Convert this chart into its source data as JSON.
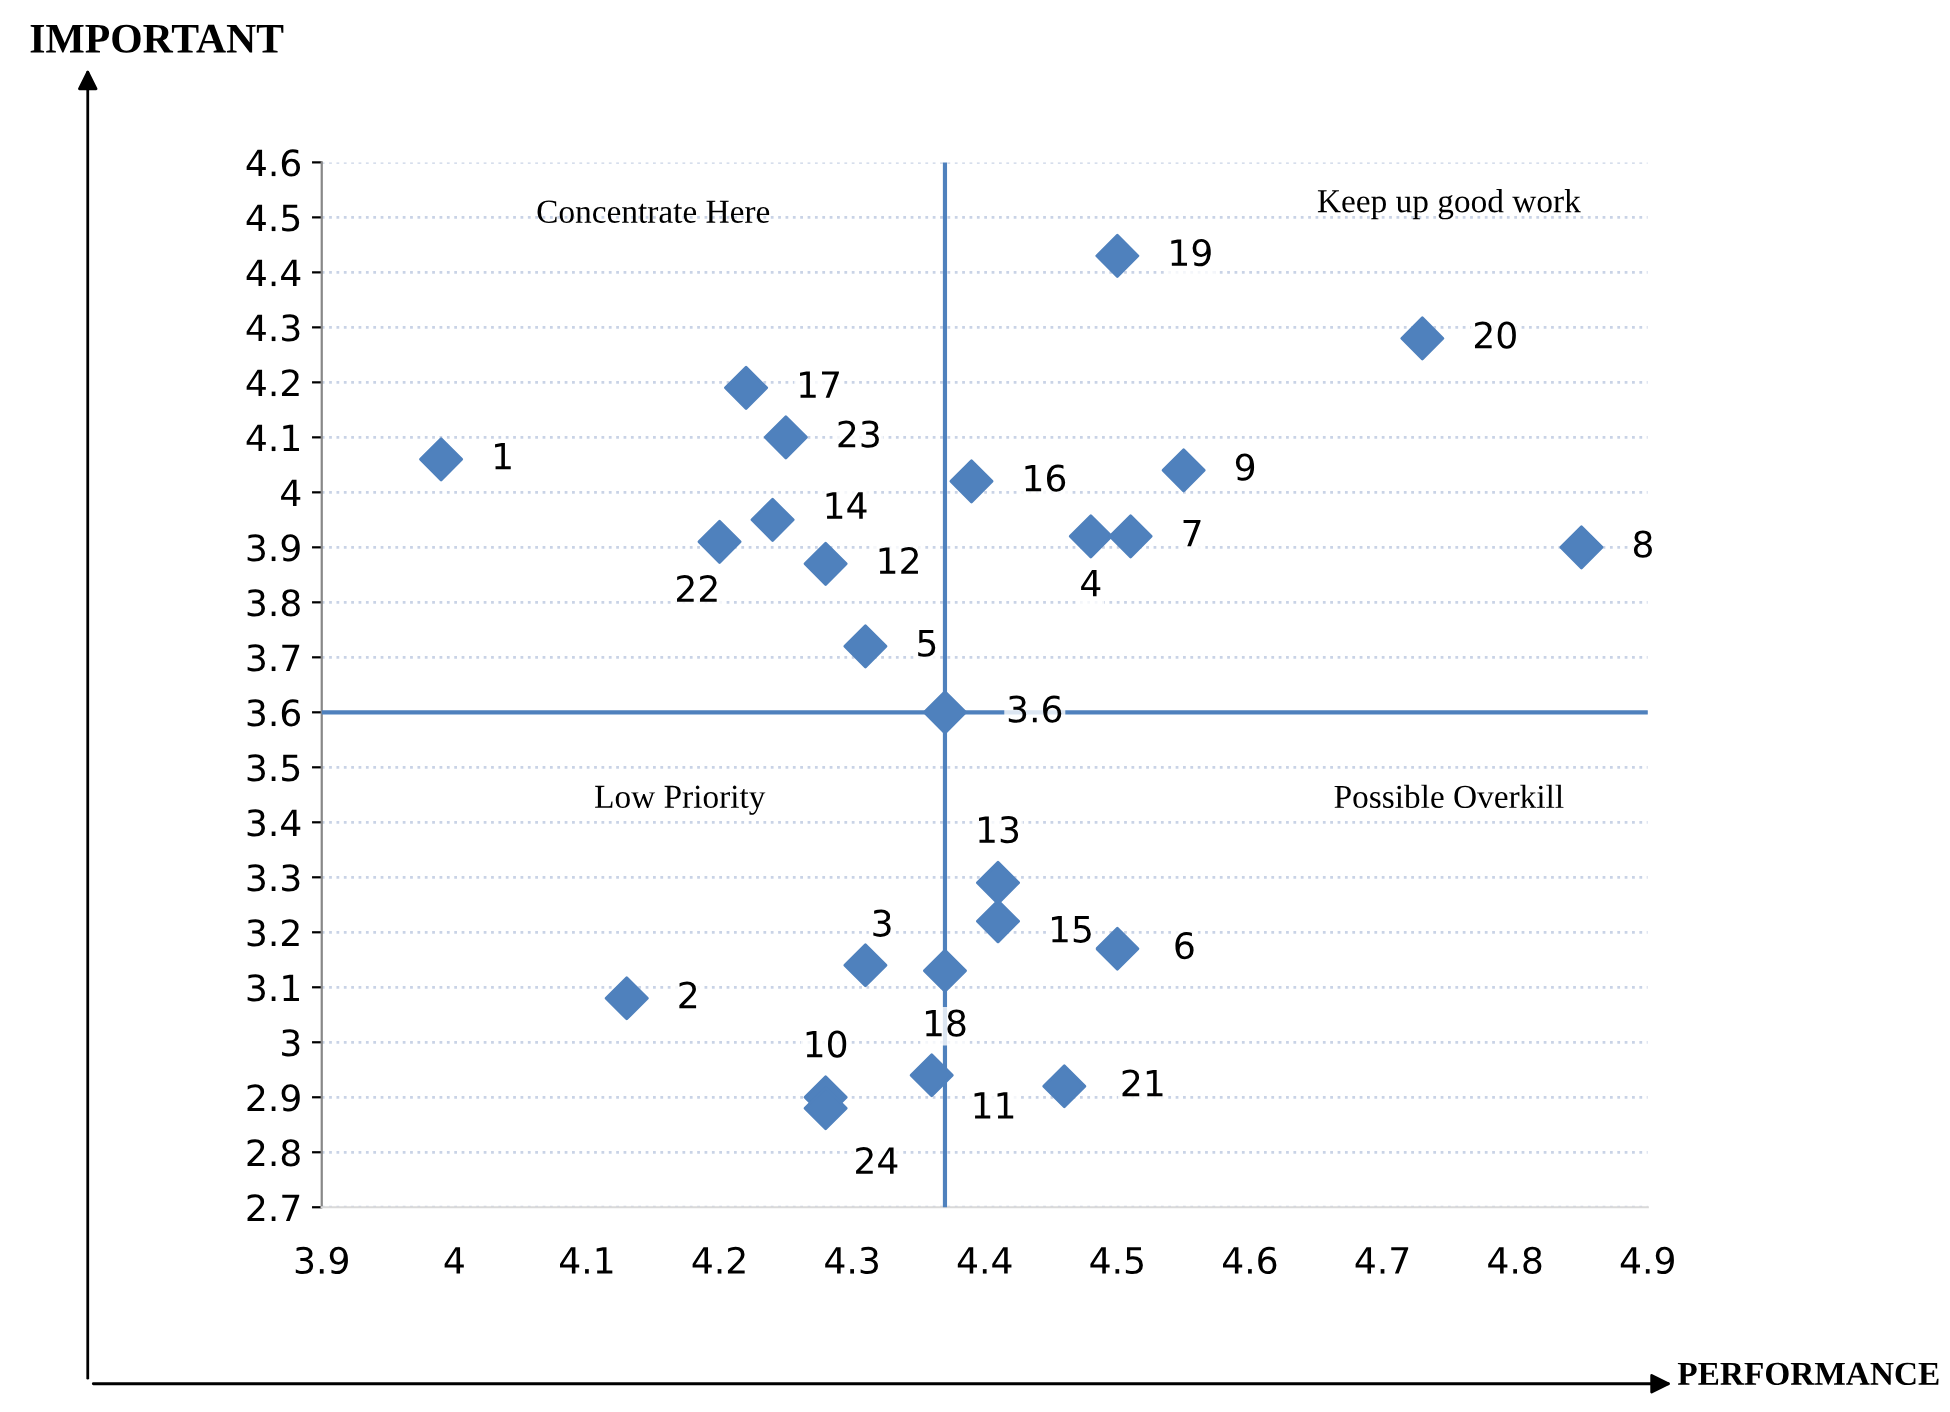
{
  "chart_data": {
    "type": "scatter",
    "xlabel": "PERFORMANCE",
    "ylabel": "IMPORTANT",
    "x": [
      3.99,
      4.22,
      4.25,
      4.24,
      4.2,
      4.28,
      4.31,
      4.37,
      4.39,
      4.5,
      4.55,
      4.48,
      4.51,
      4.73,
      4.85,
      4.41,
      4.41,
      4.5,
      4.31,
      4.37,
      4.13,
      4.36,
      4.46,
      4.28,
      4.28
    ],
    "values": [
      4.06,
      4.19,
      4.1,
      3.95,
      3.91,
      3.87,
      3.72,
      3.6,
      4.02,
      4.43,
      4.04,
      3.92,
      3.92,
      4.28,
      3.9,
      3.29,
      3.22,
      3.17,
      3.14,
      3.13,
      3.08,
      2.94,
      2.92,
      2.9,
      2.88
    ],
    "color": "#4f81bd",
    "marker": "diamond",
    "grid": "y",
    "xlim": [
      3.9,
      4.9
    ],
    "xticks": [
      3.9,
      4,
      4.1,
      4.2,
      4.3,
      4.4,
      4.5,
      4.6,
      4.7,
      4.8,
      4.9
    ],
    "ylim": [
      2.7,
      4.6
    ],
    "yticks": [
      2.7,
      2.8,
      2.9,
      3,
      3.1,
      3.2,
      3.3,
      3.4,
      3.5,
      3.6,
      3.7,
      3.8,
      3.9,
      4,
      4.1,
      4.2,
      4.3,
      4.4,
      4.5,
      4.6
    ],
    "ref_lines": [
      {
        "axis": "x",
        "value": 4.37,
        "color": "#4f81bd"
      },
      {
        "axis": "y",
        "value": 3.6,
        "color": "#4f81bd"
      }
    ],
    "annotations": [
      "Concentrate Here",
      "Keep up good work",
      "Low Priority",
      "Possible Overkill",
      {
        "text": "1",
        "x": 3.99,
        "y": 4.06
      },
      {
        "text": "17",
        "x": 4.22,
        "y": 4.19
      },
      {
        "text": "23",
        "x": 4.25,
        "y": 4.1
      },
      {
        "text": "14",
        "x": 4.24,
        "y": 3.95
      },
      {
        "text": "22",
        "x": 4.2,
        "y": 3.91
      },
      {
        "text": "12",
        "x": 4.28,
        "y": 3.87
      },
      {
        "text": "5",
        "x": 4.31,
        "y": 3.72
      },
      {
        "text": "3.6",
        "x": 4.37,
        "y": 3.6
      },
      {
        "text": "16",
        "x": 4.39,
        "y": 4.02
      },
      {
        "text": "19",
        "x": 4.5,
        "y": 4.43
      },
      {
        "text": "9",
        "x": 4.55,
        "y": 4.04
      },
      {
        "text": "4",
        "x": 4.48,
        "y": 3.92
      },
      {
        "text": "7",
        "x": 4.51,
        "y": 3.92
      },
      {
        "text": "20",
        "x": 4.73,
        "y": 4.28
      },
      {
        "text": "8",
        "x": 4.85,
        "y": 3.9
      },
      {
        "text": "13",
        "x": 4.41,
        "y": 3.29
      },
      {
        "text": "15",
        "x": 4.41,
        "y": 3.22
      },
      {
        "text": "6",
        "x": 4.5,
        "y": 3.17
      },
      {
        "text": "3",
        "x": 4.31,
        "y": 3.14
      },
      {
        "text": "18",
        "x": 4.37,
        "y": 3.13
      },
      {
        "text": "2",
        "x": 4.13,
        "y": 3.08
      },
      {
        "text": "11",
        "x": 4.36,
        "y": 2.94
      },
      {
        "text": "21",
        "x": 4.46,
        "y": 2.92
      },
      {
        "text": "10",
        "x": 4.28,
        "y": 2.9
      },
      {
        "text": "24",
        "x": 4.28,
        "y": 2.88
      }
    ]
  }
}
